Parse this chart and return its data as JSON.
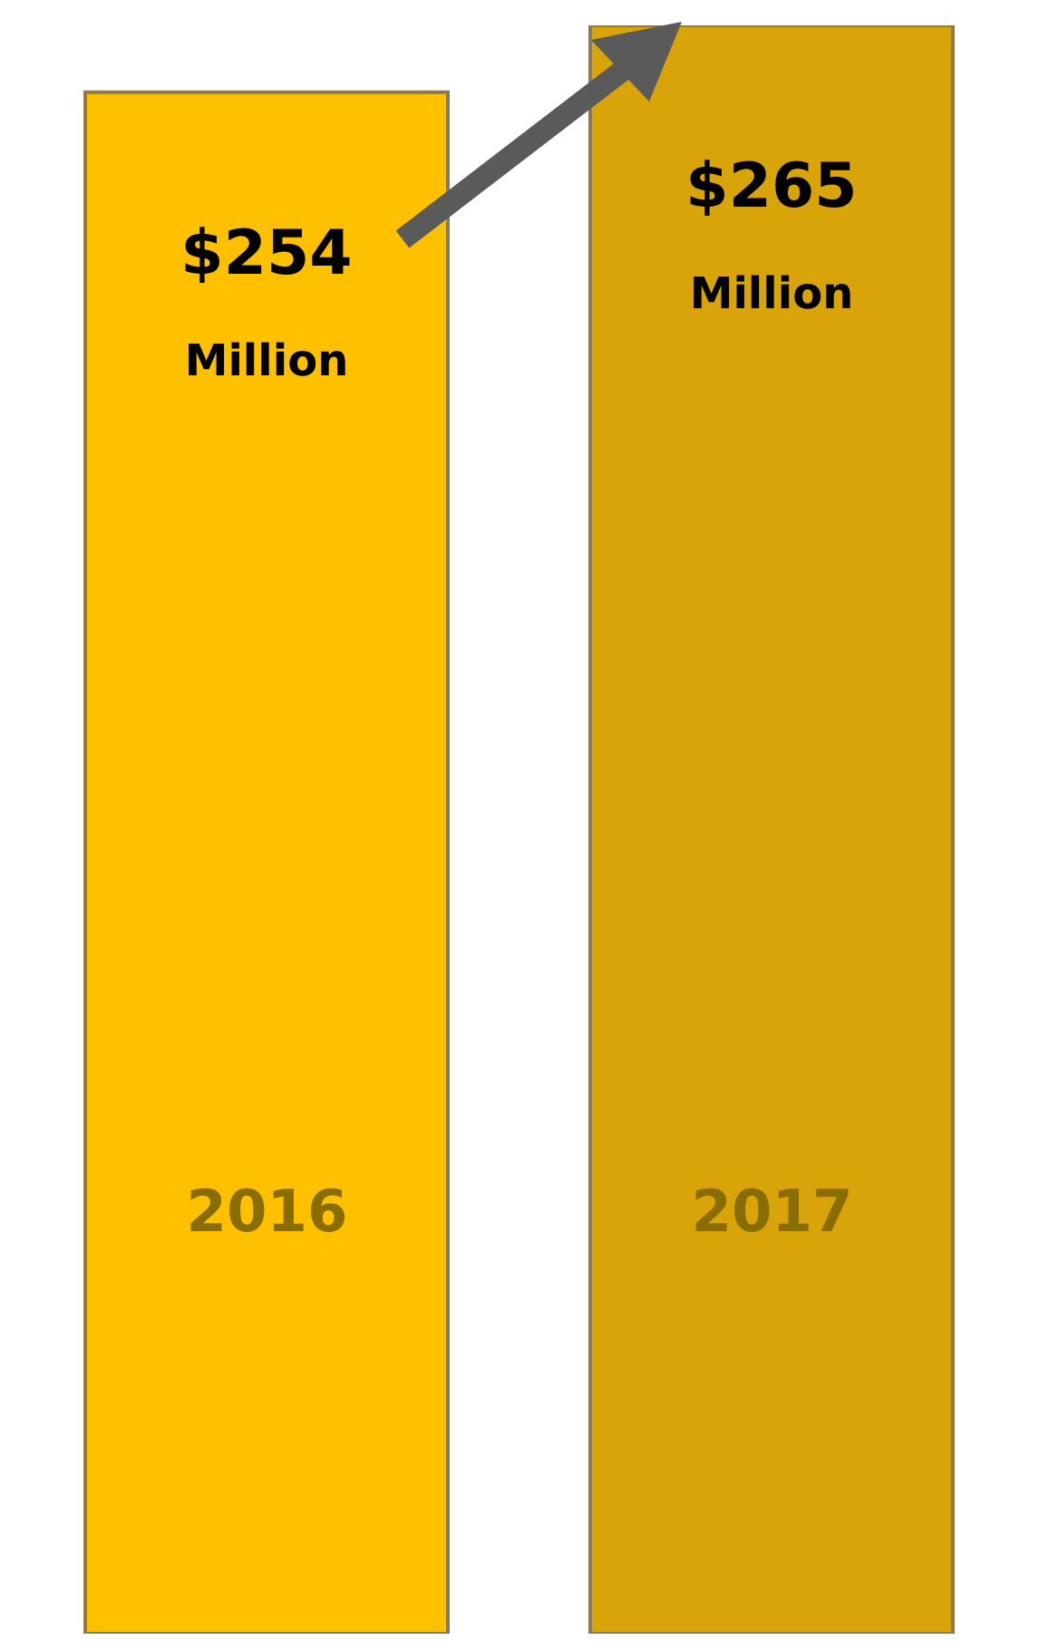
{
  "chart_data": {
    "type": "bar",
    "categories": [
      "2016",
      "2017"
    ],
    "values": [
      254,
      265
    ],
    "colors": [
      "#ffc000",
      "#d9a40a"
    ],
    "value_labels": [
      "$254 Million",
      "$265 Million"
    ]
  }
}
